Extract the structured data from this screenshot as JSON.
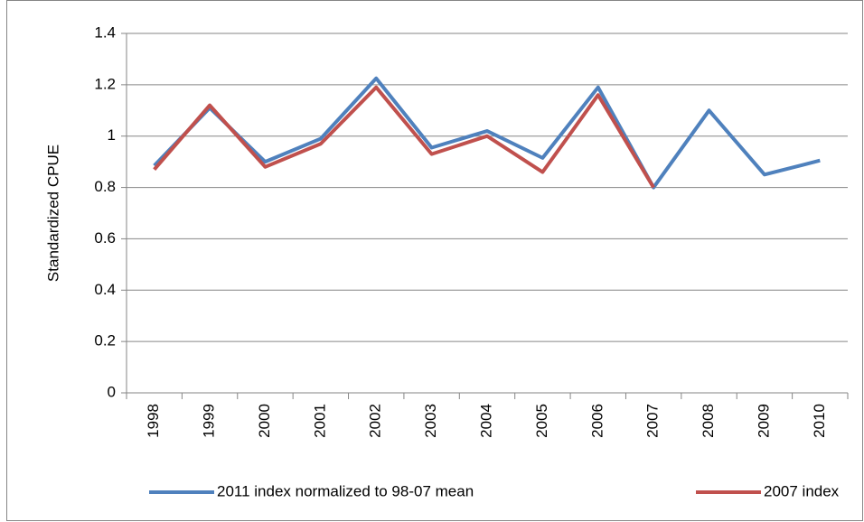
{
  "chart_data": {
    "type": "line",
    "y_label": "Standardized CPUE",
    "categories": [
      "1998",
      "1999",
      "2000",
      "2001",
      "2002",
      "2003",
      "2004",
      "2005",
      "2006",
      "2007",
      "2008",
      "2009",
      "2010"
    ],
    "series": [
      {
        "name": "2011 index normalized to 98-07 mean",
        "color": "#4f81bd",
        "values": [
          0.885,
          1.11,
          0.9,
          0.99,
          1.225,
          0.955,
          1.02,
          0.915,
          1.19,
          0.8,
          1.1,
          0.85,
          0.905
        ]
      },
      {
        "name": "2007 index",
        "color": "#c0504d",
        "values": [
          0.87,
          1.12,
          0.88,
          0.97,
          1.19,
          0.93,
          1.0,
          0.86,
          1.16,
          0.8,
          null,
          null,
          null
        ]
      }
    ],
    "ylim": [
      0,
      1.4
    ],
    "yticks": [
      0,
      0.2,
      0.4,
      0.6,
      0.8,
      1,
      1.2,
      1.4
    ],
    "grid": true,
    "legend": "bottom"
  }
}
